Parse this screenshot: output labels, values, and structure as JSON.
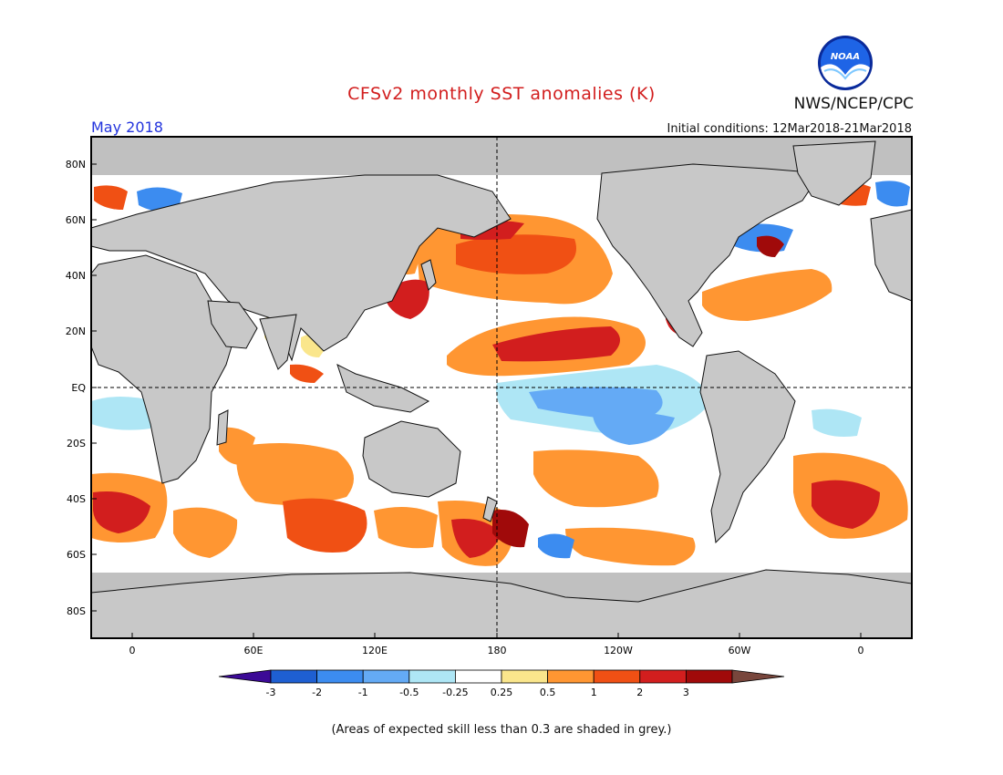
{
  "header": {
    "title": "CFSv2 monthly SST anomalies (K)",
    "agency": "NWS/NCEP/CPC",
    "month": "May 2018",
    "initial_conditions": "Initial conditions: 12Mar2018-21Mar2018",
    "logo_text": "NOAA"
  },
  "map": {
    "lat_labels": [
      "80N",
      "60N",
      "40N",
      "20N",
      "EQ",
      "20S",
      "40S",
      "60S",
      "80S"
    ],
    "lon_labels": [
      "0",
      "60E",
      "120E",
      "180",
      "120W",
      "60W",
      "0"
    ],
    "colors": {
      "land": "#c8c8c8",
      "low_skill": "#c0c0c0",
      "ocean_neutral": "#ffffff"
    }
  },
  "colorbar": {
    "tick_labels": [
      "-3",
      "-2",
      "-1",
      "-0.5",
      "-0.25",
      "0.25",
      "0.5",
      "1",
      "2",
      "3"
    ],
    "colors": [
      "#3c0a96",
      "#1e5fd2",
      "#3c8cf0",
      "#64aaf5",
      "#aee6f5",
      "#ffffff",
      "#fae68c",
      "#ff9632",
      "#f05014",
      "#d21e1e",
      "#a00a0a",
      "#78463c"
    ]
  },
  "footer": {
    "note": "(Areas of expected skill less than 0.3 are shaded in grey.)"
  }
}
